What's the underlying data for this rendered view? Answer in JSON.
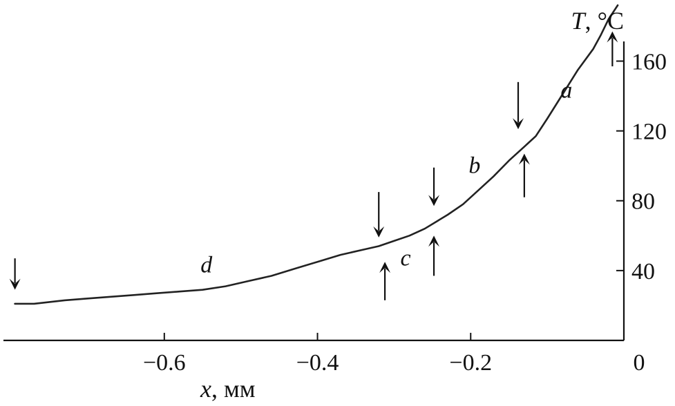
{
  "chart_data": {
    "type": "line",
    "xlabel": {
      "var": "x",
      "unit": ", мм"
    },
    "ylabel": {
      "var": "T",
      "unit": ", °C"
    },
    "xlim": [
      -0.81,
      0
    ],
    "ylim": [
      0,
      195
    ],
    "x_ticks": [
      {
        "value": -0.6,
        "label": "−0.6"
      },
      {
        "value": -0.4,
        "label": "−0.4"
      },
      {
        "value": -0.2,
        "label": "−0.2"
      },
      {
        "value": 0,
        "label": "0"
      }
    ],
    "y_ticks": [
      {
        "value": 40,
        "label": "40"
      },
      {
        "value": 80,
        "label": "80"
      },
      {
        "value": 120,
        "label": "120"
      },
      {
        "value": 160,
        "label": "160"
      }
    ],
    "series": [
      {
        "x": [
          -0.795,
          -0.77,
          -0.75,
          -0.73,
          -0.7,
          -0.67,
          -0.64,
          -0.61,
          -0.58,
          -0.55,
          -0.52,
          -0.49,
          -0.46,
          -0.43,
          -0.4,
          -0.37,
          -0.34,
          -0.32,
          -0.3,
          -0.28,
          -0.26,
          -0.245,
          -0.23,
          -0.21,
          -0.19,
          -0.17,
          -0.15,
          -0.13,
          -0.115,
          -0.1,
          -0.08,
          -0.06,
          -0.04,
          -0.03,
          -0.02,
          -0.008
        ],
        "y": [
          21,
          21,
          22,
          23,
          24,
          25,
          26,
          27,
          28,
          29,
          31,
          34,
          37,
          41,
          45,
          49,
          52,
          54,
          57,
          60,
          64,
          68,
          72,
          78,
          86,
          94,
          103,
          111,
          117,
          127,
          141,
          155,
          167,
          175,
          184,
          192
        ]
      }
    ],
    "segment_labels": [
      {
        "text": "a",
        "x": -0.075,
        "y": 139
      },
      {
        "text": "b",
        "x": -0.195,
        "y": 96
      },
      {
        "text": "c",
        "x": -0.285,
        "y": 43
      },
      {
        "text": "d",
        "x": -0.545,
        "y": 39
      }
    ],
    "arrows": [
      {
        "direction": "down",
        "x": -0.795,
        "y_from": 47,
        "y_to": 29
      },
      {
        "direction": "down",
        "x": -0.32,
        "y_from": 85,
        "y_to": 59
      },
      {
        "direction": "up",
        "x": -0.312,
        "y_from": 23,
        "y_to": 45
      },
      {
        "direction": "down",
        "x": -0.248,
        "y_from": 99,
        "y_to": 77
      },
      {
        "direction": "up",
        "x": -0.248,
        "y_from": 37,
        "y_to": 60
      },
      {
        "direction": "down",
        "x": -0.138,
        "y_from": 148,
        "y_to": 121
      },
      {
        "direction": "up",
        "x": -0.13,
        "y_from": 82,
        "y_to": 107
      },
      {
        "direction": "up",
        "x": -0.015,
        "y_from": 157,
        "y_to": 177
      }
    ]
  }
}
